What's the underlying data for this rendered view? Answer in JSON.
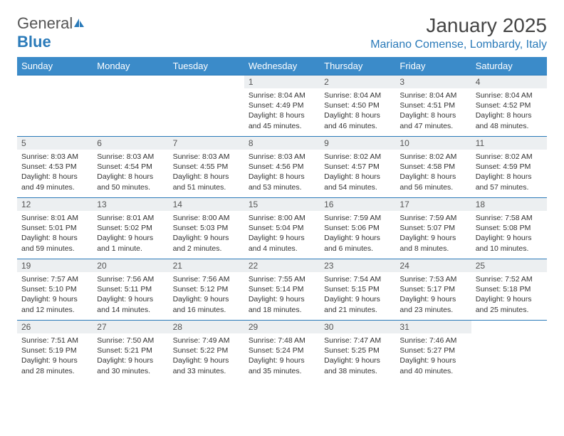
{
  "logo": {
    "part1": "General",
    "part2": "Blue"
  },
  "title": "January 2025",
  "location": "Mariano Comense, Lombardy, Italy",
  "header_color": "#3b8bc9",
  "accent_color": "#2a7ab9",
  "daynum_bg": "#eceff1",
  "weekdays": [
    "Sunday",
    "Monday",
    "Tuesday",
    "Wednesday",
    "Thursday",
    "Friday",
    "Saturday"
  ],
  "weeks": [
    [
      null,
      null,
      null,
      {
        "n": "1",
        "sr": "8:04 AM",
        "ss": "4:49 PM",
        "dl": "8 hours and 45 minutes."
      },
      {
        "n": "2",
        "sr": "8:04 AM",
        "ss": "4:50 PM",
        "dl": "8 hours and 46 minutes."
      },
      {
        "n": "3",
        "sr": "8:04 AM",
        "ss": "4:51 PM",
        "dl": "8 hours and 47 minutes."
      },
      {
        "n": "4",
        "sr": "8:04 AM",
        "ss": "4:52 PM",
        "dl": "8 hours and 48 minutes."
      }
    ],
    [
      {
        "n": "5",
        "sr": "8:03 AM",
        "ss": "4:53 PM",
        "dl": "8 hours and 49 minutes."
      },
      {
        "n": "6",
        "sr": "8:03 AM",
        "ss": "4:54 PM",
        "dl": "8 hours and 50 minutes."
      },
      {
        "n": "7",
        "sr": "8:03 AM",
        "ss": "4:55 PM",
        "dl": "8 hours and 51 minutes."
      },
      {
        "n": "8",
        "sr": "8:03 AM",
        "ss": "4:56 PM",
        "dl": "8 hours and 53 minutes."
      },
      {
        "n": "9",
        "sr": "8:02 AM",
        "ss": "4:57 PM",
        "dl": "8 hours and 54 minutes."
      },
      {
        "n": "10",
        "sr": "8:02 AM",
        "ss": "4:58 PM",
        "dl": "8 hours and 56 minutes."
      },
      {
        "n": "11",
        "sr": "8:02 AM",
        "ss": "4:59 PM",
        "dl": "8 hours and 57 minutes."
      }
    ],
    [
      {
        "n": "12",
        "sr": "8:01 AM",
        "ss": "5:01 PM",
        "dl": "8 hours and 59 minutes."
      },
      {
        "n": "13",
        "sr": "8:01 AM",
        "ss": "5:02 PM",
        "dl": "9 hours and 1 minute."
      },
      {
        "n": "14",
        "sr": "8:00 AM",
        "ss": "5:03 PM",
        "dl": "9 hours and 2 minutes."
      },
      {
        "n": "15",
        "sr": "8:00 AM",
        "ss": "5:04 PM",
        "dl": "9 hours and 4 minutes."
      },
      {
        "n": "16",
        "sr": "7:59 AM",
        "ss": "5:06 PM",
        "dl": "9 hours and 6 minutes."
      },
      {
        "n": "17",
        "sr": "7:59 AM",
        "ss": "5:07 PM",
        "dl": "9 hours and 8 minutes."
      },
      {
        "n": "18",
        "sr": "7:58 AM",
        "ss": "5:08 PM",
        "dl": "9 hours and 10 minutes."
      }
    ],
    [
      {
        "n": "19",
        "sr": "7:57 AM",
        "ss": "5:10 PM",
        "dl": "9 hours and 12 minutes."
      },
      {
        "n": "20",
        "sr": "7:56 AM",
        "ss": "5:11 PM",
        "dl": "9 hours and 14 minutes."
      },
      {
        "n": "21",
        "sr": "7:56 AM",
        "ss": "5:12 PM",
        "dl": "9 hours and 16 minutes."
      },
      {
        "n": "22",
        "sr": "7:55 AM",
        "ss": "5:14 PM",
        "dl": "9 hours and 18 minutes."
      },
      {
        "n": "23",
        "sr": "7:54 AM",
        "ss": "5:15 PM",
        "dl": "9 hours and 21 minutes."
      },
      {
        "n": "24",
        "sr": "7:53 AM",
        "ss": "5:17 PM",
        "dl": "9 hours and 23 minutes."
      },
      {
        "n": "25",
        "sr": "7:52 AM",
        "ss": "5:18 PM",
        "dl": "9 hours and 25 minutes."
      }
    ],
    [
      {
        "n": "26",
        "sr": "7:51 AM",
        "ss": "5:19 PM",
        "dl": "9 hours and 28 minutes."
      },
      {
        "n": "27",
        "sr": "7:50 AM",
        "ss": "5:21 PM",
        "dl": "9 hours and 30 minutes."
      },
      {
        "n": "28",
        "sr": "7:49 AM",
        "ss": "5:22 PM",
        "dl": "9 hours and 33 minutes."
      },
      {
        "n": "29",
        "sr": "7:48 AM",
        "ss": "5:24 PM",
        "dl": "9 hours and 35 minutes."
      },
      {
        "n": "30",
        "sr": "7:47 AM",
        "ss": "5:25 PM",
        "dl": "9 hours and 38 minutes."
      },
      {
        "n": "31",
        "sr": "7:46 AM",
        "ss": "5:27 PM",
        "dl": "9 hours and 40 minutes."
      },
      null
    ]
  ],
  "labels": {
    "sunrise": "Sunrise:",
    "sunset": "Sunset:",
    "daylight": "Daylight:"
  }
}
